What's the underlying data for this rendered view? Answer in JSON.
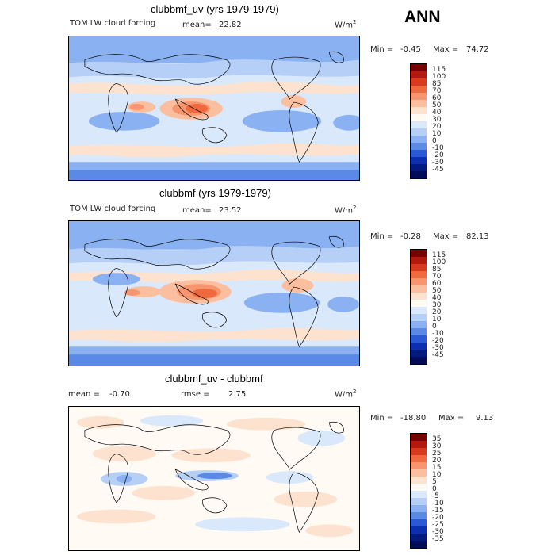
{
  "header": {
    "season": "ANN"
  },
  "panels": [
    {
      "title": "clubbmf_uv (yrs 1979-1979)",
      "left_label": "TOM LW cloud forcing",
      "mean_label": "mean=",
      "mean_value": "22.82",
      "units_base": "W/m",
      "units_exp": "2",
      "min_label": "Min =",
      "min_value": "-0.45",
      "max_label": "Max =",
      "max_value": "74.72",
      "colorbar_levels": [
        "115",
        "100",
        "85",
        "70",
        "60",
        "50",
        "40",
        "30",
        "20",
        "10",
        "0",
        "-10",
        "-20",
        "-30",
        "-45"
      ]
    },
    {
      "title": "clubbmf (yrs 1979-1979)",
      "left_label": "TOM LW cloud forcing",
      "mean_label": "mean=",
      "mean_value": "23.52",
      "units_base": "W/m",
      "units_exp": "2",
      "min_label": "Min =",
      "min_value": "-0.28",
      "max_label": "Max =",
      "max_value": "82.13",
      "colorbar_levels": [
        "115",
        "100",
        "85",
        "70",
        "60",
        "50",
        "40",
        "30",
        "20",
        "10",
        "0",
        "-10",
        "-20",
        "-30",
        "-45"
      ]
    },
    {
      "title": "clubbmf_uv - clubbmf",
      "left_label": "",
      "mean_label": "mean =",
      "mean_value": "-0.70",
      "rmse_label": "rmse =",
      "rmse_value": "2.75",
      "units_base": "W/m",
      "units_exp": "2",
      "min_label": "Min =",
      "min_value": "-18.80",
      "max_label": "Max =",
      "max_value": "9.13",
      "colorbar_levels": [
        "35",
        "30",
        "25",
        "20",
        "15",
        "10",
        "5",
        "0",
        "-5",
        "-10",
        "-15",
        "-20",
        "-25",
        "-30",
        "-35"
      ]
    }
  ],
  "colors": {
    "abs_scale": [
      "#7a0000",
      "#b21a10",
      "#d83a1e",
      "#ee6a3e",
      "#f7956f",
      "#fbbfa0",
      "#fde3cf",
      "#fffaf4",
      "#dae8fb",
      "#b5cff7",
      "#8ab1f1",
      "#5a89e6",
      "#2b58d4",
      "#0c2fb0",
      "#001a7e",
      "#000c5a"
    ],
    "diff_scale": [
      "#7a0000",
      "#b21a10",
      "#d83a1e",
      "#ee6a3e",
      "#f7956f",
      "#fbbfa0",
      "#fde3cf",
      "#fffaf4",
      "#dae8fb",
      "#b5cff7",
      "#8ab1f1",
      "#5a89e6",
      "#2b58d4",
      "#0c2fb0",
      "#001a7e",
      "#000c5a"
    ],
    "land_outline": "#000000"
  }
}
